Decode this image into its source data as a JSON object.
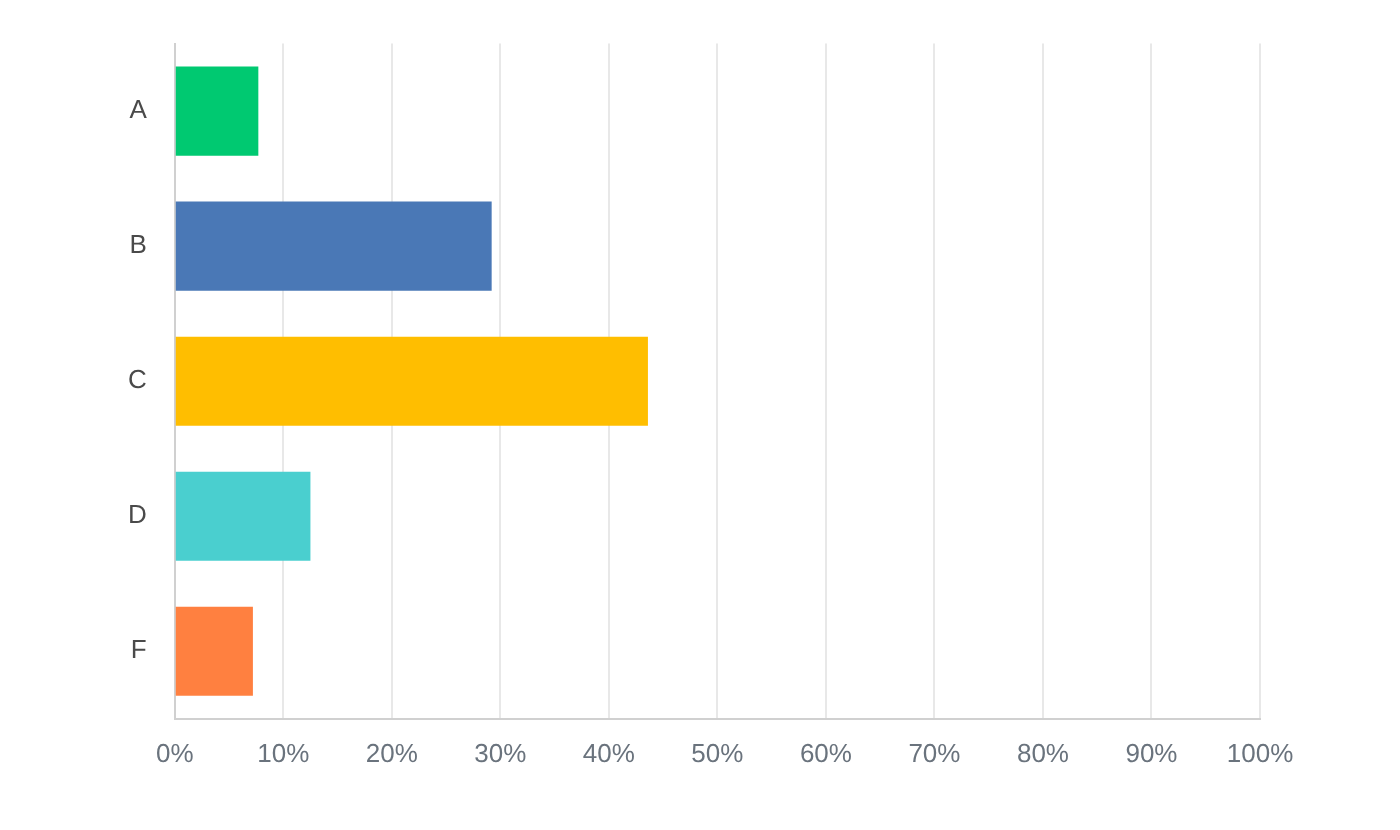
{
  "chart_data": {
    "type": "bar",
    "orientation": "horizontal",
    "categories": [
      "A",
      "B",
      "C",
      "D",
      "F"
    ],
    "values": [
      7.7,
      29.2,
      43.6,
      12.5,
      7.2
    ],
    "colors": [
      "#00c971",
      "#4a78b6",
      "#ffbe00",
      "#4acfcf",
      "#ff8040"
    ],
    "xlim": [
      0,
      100
    ],
    "xticks": [
      {
        "value": 0,
        "label": "0%"
      },
      {
        "value": 10,
        "label": "10%"
      },
      {
        "value": 20,
        "label": "20%"
      },
      {
        "value": 30,
        "label": "30%"
      },
      {
        "value": 40,
        "label": "40%"
      },
      {
        "value": 50,
        "label": "50%"
      },
      {
        "value": 60,
        "label": "60%"
      },
      {
        "value": 70,
        "label": "70%"
      },
      {
        "value": 80,
        "label": "80%"
      },
      {
        "value": 90,
        "label": "90%"
      },
      {
        "value": 100,
        "label": "100%"
      }
    ],
    "grid": "x"
  }
}
